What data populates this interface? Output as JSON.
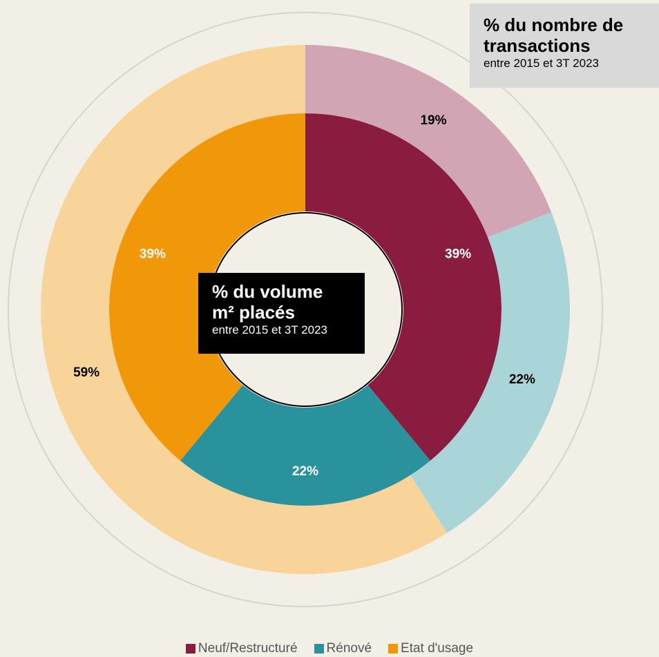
{
  "chart_data": {
    "type": "donut",
    "categories": [
      "Neuf/Restructuré",
      "Rénové",
      "Etat d'usage"
    ],
    "series": [
      {
        "name": "% du volume\nm² placés",
        "subtitle": "entre 2015 et 3T 2023",
        "colors": [
          "#8a1c40",
          "#2a929c",
          "#f0970a"
        ],
        "values": [
          39,
          22,
          39
        ],
        "value_labels": [
          "39%",
          "22%",
          "39%"
        ]
      },
      {
        "name": "% du nombre de\ntransactions",
        "subtitle": "entre 2015 et 3T 2023",
        "colors": [
          "#d1a5b4",
          "#aad5d8",
          "#f8d49b"
        ],
        "values": [
          19,
          22,
          59
        ],
        "value_labels": [
          "19%",
          "22%",
          "59%"
        ]
      }
    ]
  }
}
